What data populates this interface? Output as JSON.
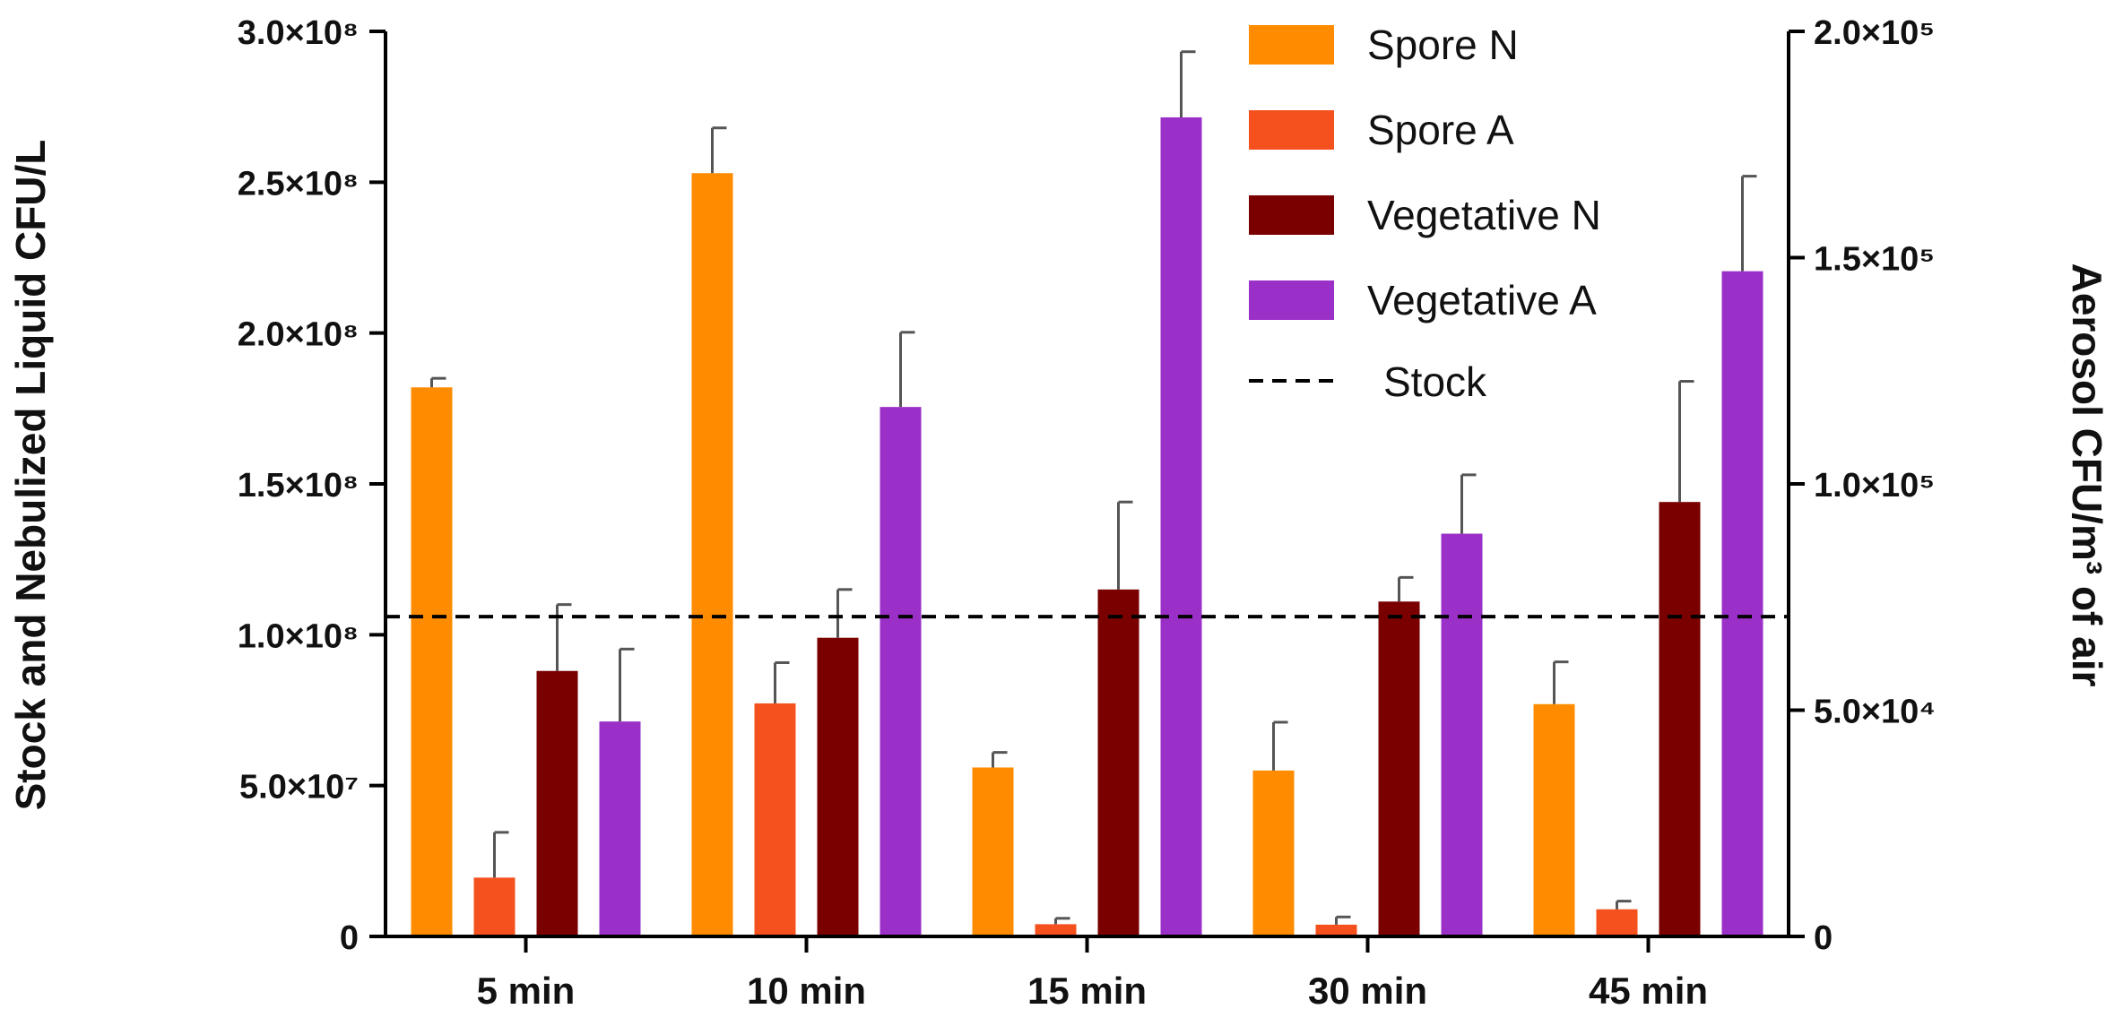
{
  "chart_data": {
    "type": "bar",
    "title": "",
    "categories": [
      "5 min",
      "10 min",
      "15 min",
      "30 min",
      "45 min"
    ],
    "ylabel": "Stock and Nebulized Liquid CFU/L",
    "y2label": "Aerosol CFU/m³ of air",
    "ylim": [
      0,
      300000000
    ],
    "y2lim": [
      0,
      200000
    ],
    "yticks": [
      {
        "value": 0,
        "label": "0"
      },
      {
        "value": 50000000,
        "label": "5.0×10⁷"
      },
      {
        "value": 100000000,
        "label": "1.0×10⁸"
      },
      {
        "value": 150000000,
        "label": "1.5×10⁸"
      },
      {
        "value": 200000000,
        "label": "2.0×10⁸"
      },
      {
        "value": 250000000,
        "label": "2.5×10⁸"
      },
      {
        "value": 300000000,
        "label": "3.0×10⁸"
      }
    ],
    "y2ticks": [
      {
        "value": 0,
        "label": "0"
      },
      {
        "value": 50000,
        "label": "5.0×10⁴"
      },
      {
        "value": 100000,
        "label": "1.0×10⁵"
      },
      {
        "value": 150000,
        "label": "1.5×10⁵"
      },
      {
        "value": 200000,
        "label": "2.0×10⁵"
      }
    ],
    "series": [
      {
        "name": "Spore N",
        "axis": "left",
        "color": "#FF8C00",
        "values": [
          182000000,
          253000000,
          56000000,
          55000000,
          77000000
        ],
        "errors": [
          3000000,
          15000000,
          5000000,
          16000000,
          14000000
        ]
      },
      {
        "name": "Spore A",
        "axis": "right",
        "color": "#F4511E",
        "values": [
          13000,
          51500,
          2700,
          2600,
          6000
        ],
        "errors": [
          10000,
          9000,
          1300,
          1700,
          1800
        ]
      },
      {
        "name": "Vegetative N",
        "axis": "left",
        "color": "#7A0000",
        "values": [
          88000000,
          99000000,
          115000000,
          111000000,
          144000000
        ],
        "errors": [
          22000000,
          16000000,
          29000000,
          8000000,
          40000000
        ]
      },
      {
        "name": "Vegetative A",
        "axis": "right",
        "color": "#9B30C8",
        "values": [
          47500,
          117000,
          181000,
          89000,
          147000
        ],
        "errors": [
          16000,
          16500,
          14500,
          13000,
          21000
        ]
      }
    ],
    "reference_lines": [
      {
        "name": "Stock",
        "axis": "left",
        "value": 106000000,
        "style": "dashed",
        "color": "#000000"
      }
    ],
    "legend": {
      "position": "top-right",
      "items": [
        {
          "label": "Spore N",
          "color": "#FF8C00",
          "kind": "bar"
        },
        {
          "label": "Spore A",
          "color": "#F4511E",
          "kind": "bar"
        },
        {
          "label": "Vegetative N",
          "color": "#7A0000",
          "kind": "bar"
        },
        {
          "label": "Vegetative A",
          "color": "#9B30C8",
          "kind": "bar"
        },
        {
          "label": "Stock",
          "color": "#000000",
          "kind": "dashed-line"
        }
      ]
    }
  }
}
